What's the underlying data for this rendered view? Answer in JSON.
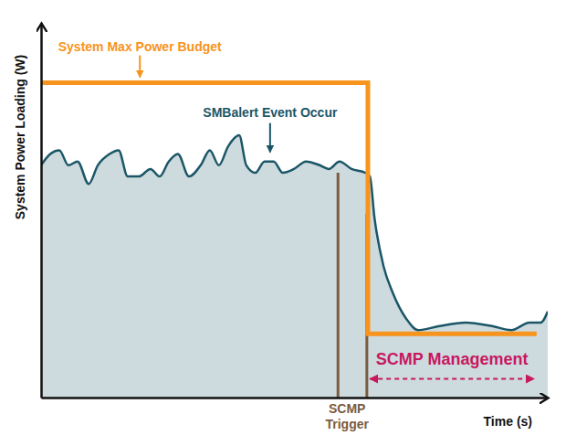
{
  "chart_data": {
    "type": "area",
    "x_label": "Time (s)",
    "y_label": "System Power Loading (W)",
    "xlim": [
      0,
      100
    ],
    "ylim": [
      0,
      100
    ],
    "xticks": [],
    "yticks": [],
    "tick_labels": false,
    "grid": false,
    "series": [
      {
        "type": "area",
        "color": "#1b5667",
        "x": [
          0,
          1.8,
          3.6,
          5.4,
          7.2,
          9.4,
          11.2,
          13.5,
          15.3,
          17.1,
          19.3,
          21.6,
          23.4,
          25.2,
          27.0,
          29.2,
          31.5,
          33.3,
          35.1,
          36.9,
          39.1,
          40.5,
          42.3,
          44.1,
          45.9,
          47.7,
          49.9,
          52.3,
          55.0,
          56.8,
          58.9,
          61.3,
          64.0,
          64.9,
          65.8,
          67.6,
          69.4,
          72.1,
          74.4,
          78.4,
          83.8,
          89.2,
          92.8,
          96.4,
          98.6,
          100
        ],
        "values": [
          62,
          65,
          66,
          62,
          63,
          57,
          62,
          65,
          66,
          59,
          59,
          61,
          59,
          63,
          65,
          59,
          62,
          66,
          62,
          67,
          70,
          62,
          60,
          63,
          63,
          60,
          61,
          63,
          62,
          61,
          63,
          61,
          60,
          59,
          48,
          35,
          28,
          21,
          18,
          19,
          20,
          19,
          18,
          20,
          20,
          23
        ]
      },
      {
        "type": "line",
        "color": "#f7941d",
        "x": [
          0,
          64.5,
          64.5,
          97.8
        ],
        "values": [
          84,
          84,
          17,
          17
        ]
      }
    ],
    "annotations": [
      {
        "text": "System Max Power Budget",
        "color": "#f7941d",
        "x": 19.5,
        "y": 84
      },
      {
        "text": "SMBalert Event Occur",
        "color": "#1b5667",
        "x": 45.2,
        "y": 64
      },
      {
        "text": "SCMP Trigger",
        "color": "#7b5b3c",
        "x": [
          58.6,
          64.3
        ],
        "y": [
          60,
          49
        ]
      },
      {
        "text": "SCMP Management",
        "color": "#c7185e",
        "x": [
          64.9,
          97.3
        ],
        "y": 5
      }
    ]
  }
}
